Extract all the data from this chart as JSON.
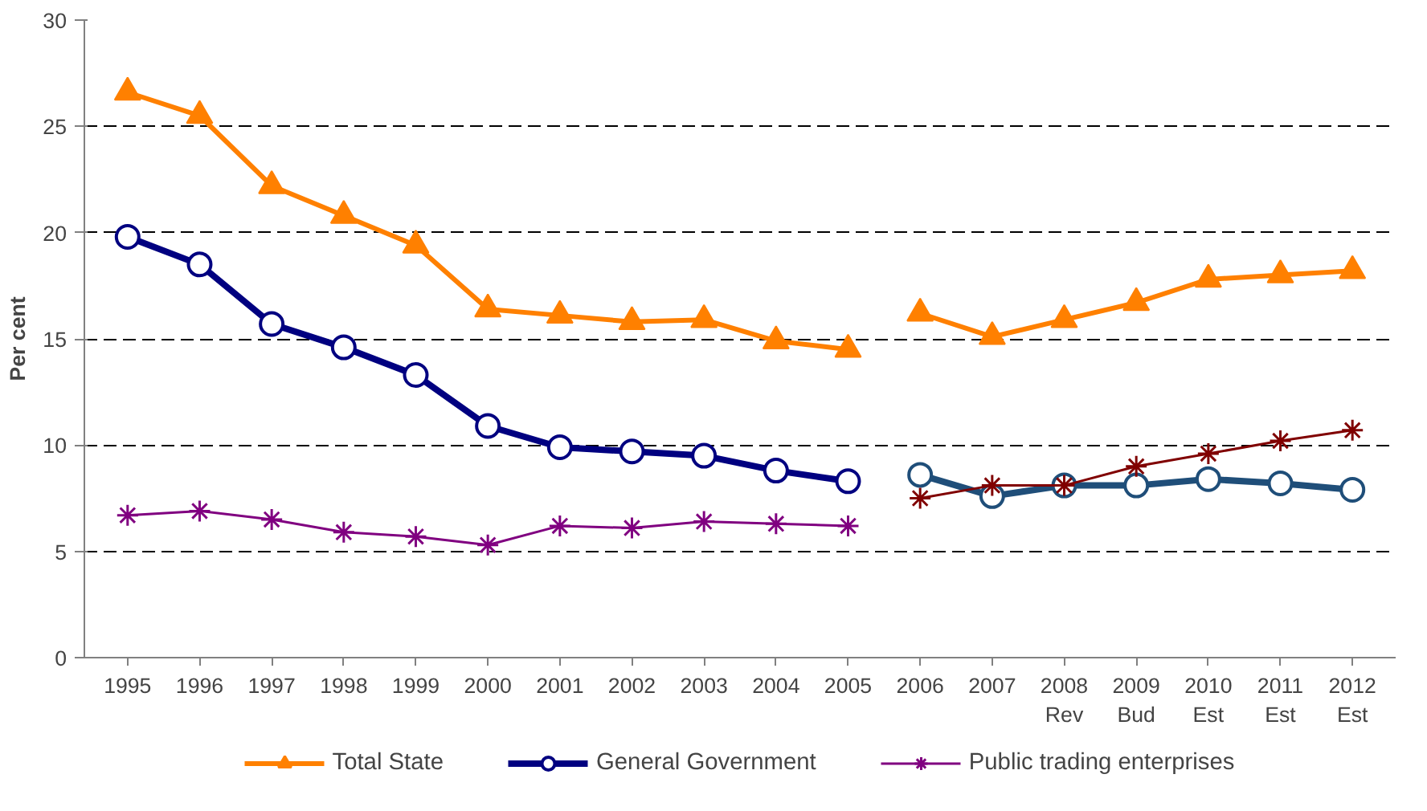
{
  "chart_data": {
    "type": "line",
    "ylabel": "Per cent",
    "categories": [
      "1995",
      "1996",
      "1997",
      "1998",
      "1999",
      "2000",
      "2001",
      "2002",
      "2003",
      "2004",
      "2005",
      "2006",
      "2007",
      "2008\nRev",
      "2009\nBud",
      "2010\nEst",
      "2011\nEst",
      "2012\nEst"
    ],
    "ylim": [
      0,
      30
    ],
    "yticks": [
      0,
      5,
      10,
      15,
      20,
      25,
      30
    ],
    "grid": "y",
    "legend": "bottom",
    "line_style": "solid",
    "series": [
      {
        "name": "Total State",
        "color": "#ff8000",
        "marker": "triangle",
        "values": [
          26.6,
          25.5,
          22.2,
          20.8,
          19.4,
          16.4,
          16.1,
          15.8,
          15.9,
          14.9,
          14.5,
          null,
          null,
          null,
          null,
          null,
          null,
          null
        ]
      },
      {
        "name": "General Government",
        "color": "#000080",
        "marker": "circle",
        "values": [
          19.8,
          18.5,
          15.7,
          14.6,
          13.3,
          10.9,
          9.9,
          9.7,
          9.5,
          8.8,
          8.3,
          null,
          null,
          null,
          null,
          null,
          null,
          null
        ]
      },
      {
        "name": "Public trading enterprises",
        "color": "#800080",
        "marker": "cross",
        "values": [
          6.7,
          6.9,
          6.5,
          5.9,
          5.7,
          5.3,
          6.2,
          6.1,
          6.4,
          6.3,
          6.2,
          null,
          null,
          null,
          null,
          null,
          null,
          null
        ]
      },
      {
        "color": "#ff8000",
        "marker": "triangle",
        "values": [
          null,
          null,
          null,
          null,
          null,
          null,
          null,
          null,
          null,
          null,
          null,
          16.2,
          15.1,
          15.9,
          16.7,
          17.8,
          18.0,
          18.2
        ]
      },
      {
        "color": "#1f4e79",
        "marker": "circle",
        "values": [
          null,
          null,
          null,
          null,
          null,
          null,
          null,
          null,
          null,
          null,
          null,
          8.6,
          7.6,
          8.1,
          8.1,
          8.4,
          8.2,
          7.9
        ]
      },
      {
        "color": "#800000",
        "marker": "cross",
        "values": [
          null,
          null,
          null,
          null,
          null,
          null,
          null,
          null,
          null,
          null,
          null,
          7.5,
          8.1,
          8.1,
          9.0,
          9.6,
          10.2,
          10.7
        ]
      }
    ]
  }
}
